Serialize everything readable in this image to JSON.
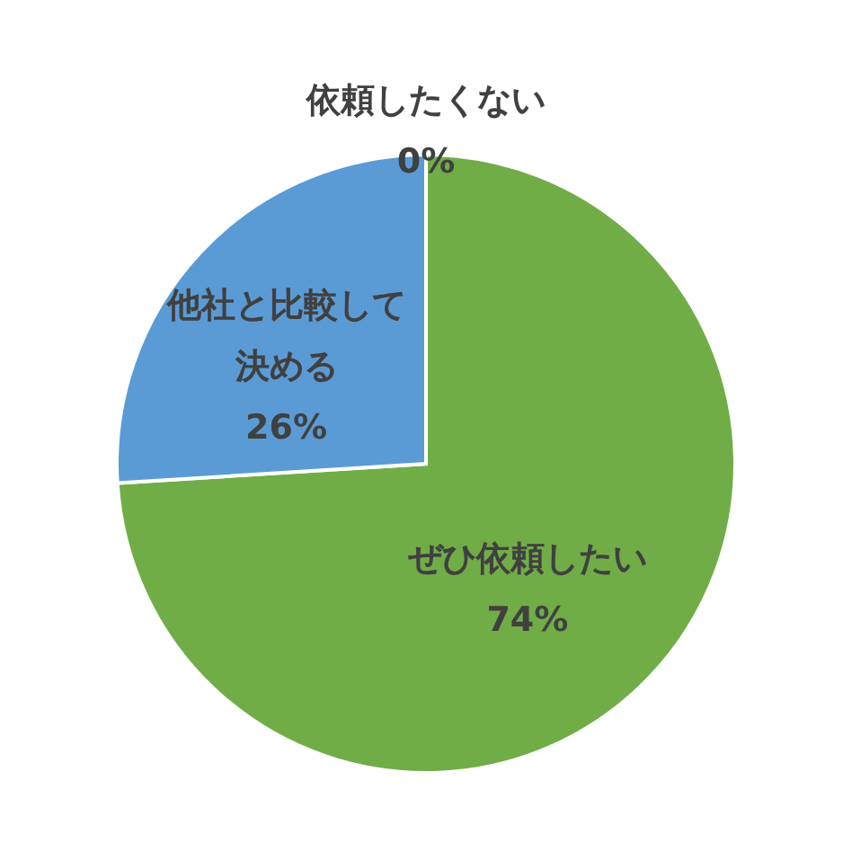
{
  "chart_data": {
    "type": "pie",
    "categories": [
      "ぜひ依頼したい",
      "他社と比較して決める",
      "依頼したくない"
    ],
    "values": [
      74,
      26,
      0
    ],
    "colors": [
      "#70ad47",
      "#5b9bd5",
      "#a5a5a5"
    ],
    "value_labels": [
      "74%",
      "26%",
      "0%"
    ]
  }
}
